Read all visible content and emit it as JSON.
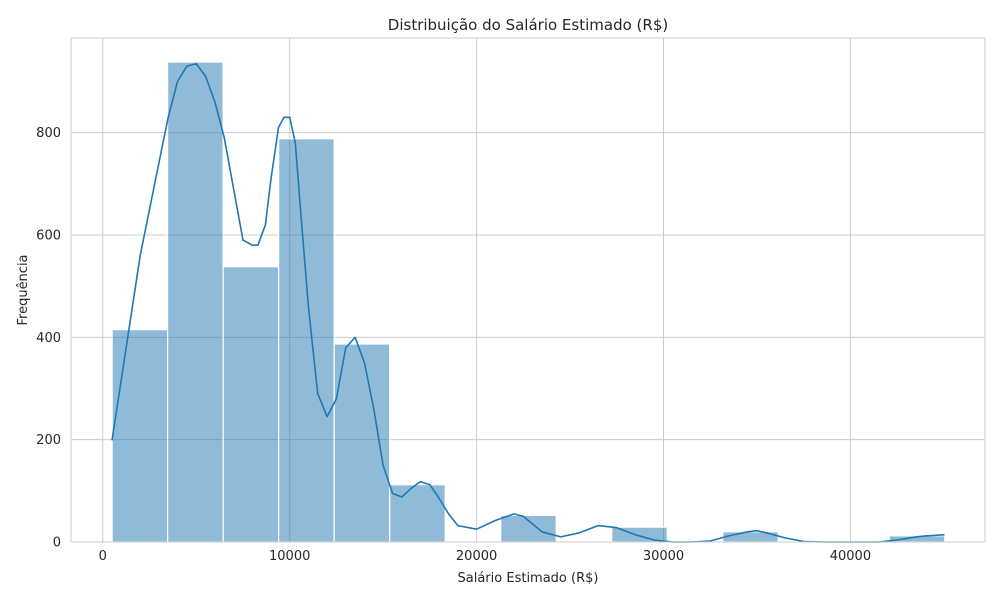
{
  "chart_data": {
    "type": "bar",
    "title": "Distribuição do Salário Estimado (R$)",
    "xlabel": "Salário Estimado (R$)",
    "ylabel": "Frequência",
    "xlim": [
      -1700,
      47200
    ],
    "ylim": [
      0,
      985
    ],
    "xticks": [
      0,
      10000,
      20000,
      30000,
      40000
    ],
    "yticks": [
      0,
      200,
      400,
      600,
      800
    ],
    "grid": true,
    "bar_color": "#1f77b4",
    "bars": [
      {
        "x0": 500,
        "x1": 3470,
        "value": 415
      },
      {
        "x0": 3470,
        "x1": 6440,
        "value": 938
      },
      {
        "x0": 6440,
        "x1": 9410,
        "value": 538
      },
      {
        "x0": 9410,
        "x1": 12380,
        "value": 788
      },
      {
        "x0": 12380,
        "x1": 15350,
        "value": 387
      },
      {
        "x0": 15350,
        "x1": 18320,
        "value": 112
      },
      {
        "x0": 18320,
        "x1": 21290,
        "value": 0
      },
      {
        "x0": 21290,
        "x1": 24260,
        "value": 52
      },
      {
        "x0": 24260,
        "x1": 27230,
        "value": 0
      },
      {
        "x0": 27230,
        "x1": 30200,
        "value": 29
      },
      {
        "x0": 30200,
        "x1": 33170,
        "value": 0
      },
      {
        "x0": 33170,
        "x1": 36140,
        "value": 20
      },
      {
        "x0": 36140,
        "x1": 39110,
        "value": 0
      },
      {
        "x0": 39110,
        "x1": 42080,
        "value": 0
      },
      {
        "x0": 42080,
        "x1": 45050,
        "value": 12
      }
    ],
    "kde": {
      "x": [
        500,
        1000,
        2000,
        3000,
        3500,
        4000,
        4500,
        5000,
        5500,
        6000,
        6500,
        7000,
        7500,
        8000,
        8300,
        8700,
        9000,
        9400,
        9700,
        10000,
        10300,
        10600,
        11000,
        11500,
        12000,
        12500,
        13000,
        13500,
        14000,
        14500,
        15000,
        15500,
        16000,
        16500,
        17000,
        17500,
        18000,
        18500,
        19000,
        20000,
        21000,
        22000,
        22500,
        23500,
        24500,
        25500,
        26500,
        27500,
        28500,
        29500,
        30500,
        31500,
        32500,
        33500,
        34500,
        35000,
        35500,
        36500,
        37500,
        38500,
        39500,
        40500,
        41500,
        42500,
        43500,
        44000,
        45000
      ],
      "y": [
        200,
        320,
        560,
        740,
        830,
        900,
        930,
        935,
        910,
        860,
        790,
        690,
        590,
        580,
        580,
        620,
        710,
        810,
        830,
        830,
        780,
        640,
        460,
        290,
        245,
        280,
        380,
        400,
        350,
        260,
        150,
        95,
        88,
        105,
        118,
        112,
        85,
        55,
        32,
        25,
        42,
        55,
        50,
        20,
        10,
        18,
        32,
        28,
        14,
        4,
        0,
        0,
        2,
        12,
        20,
        22,
        18,
        8,
        1,
        0,
        0,
        0,
        0,
        4,
        10,
        12,
        14
      ]
    }
  }
}
